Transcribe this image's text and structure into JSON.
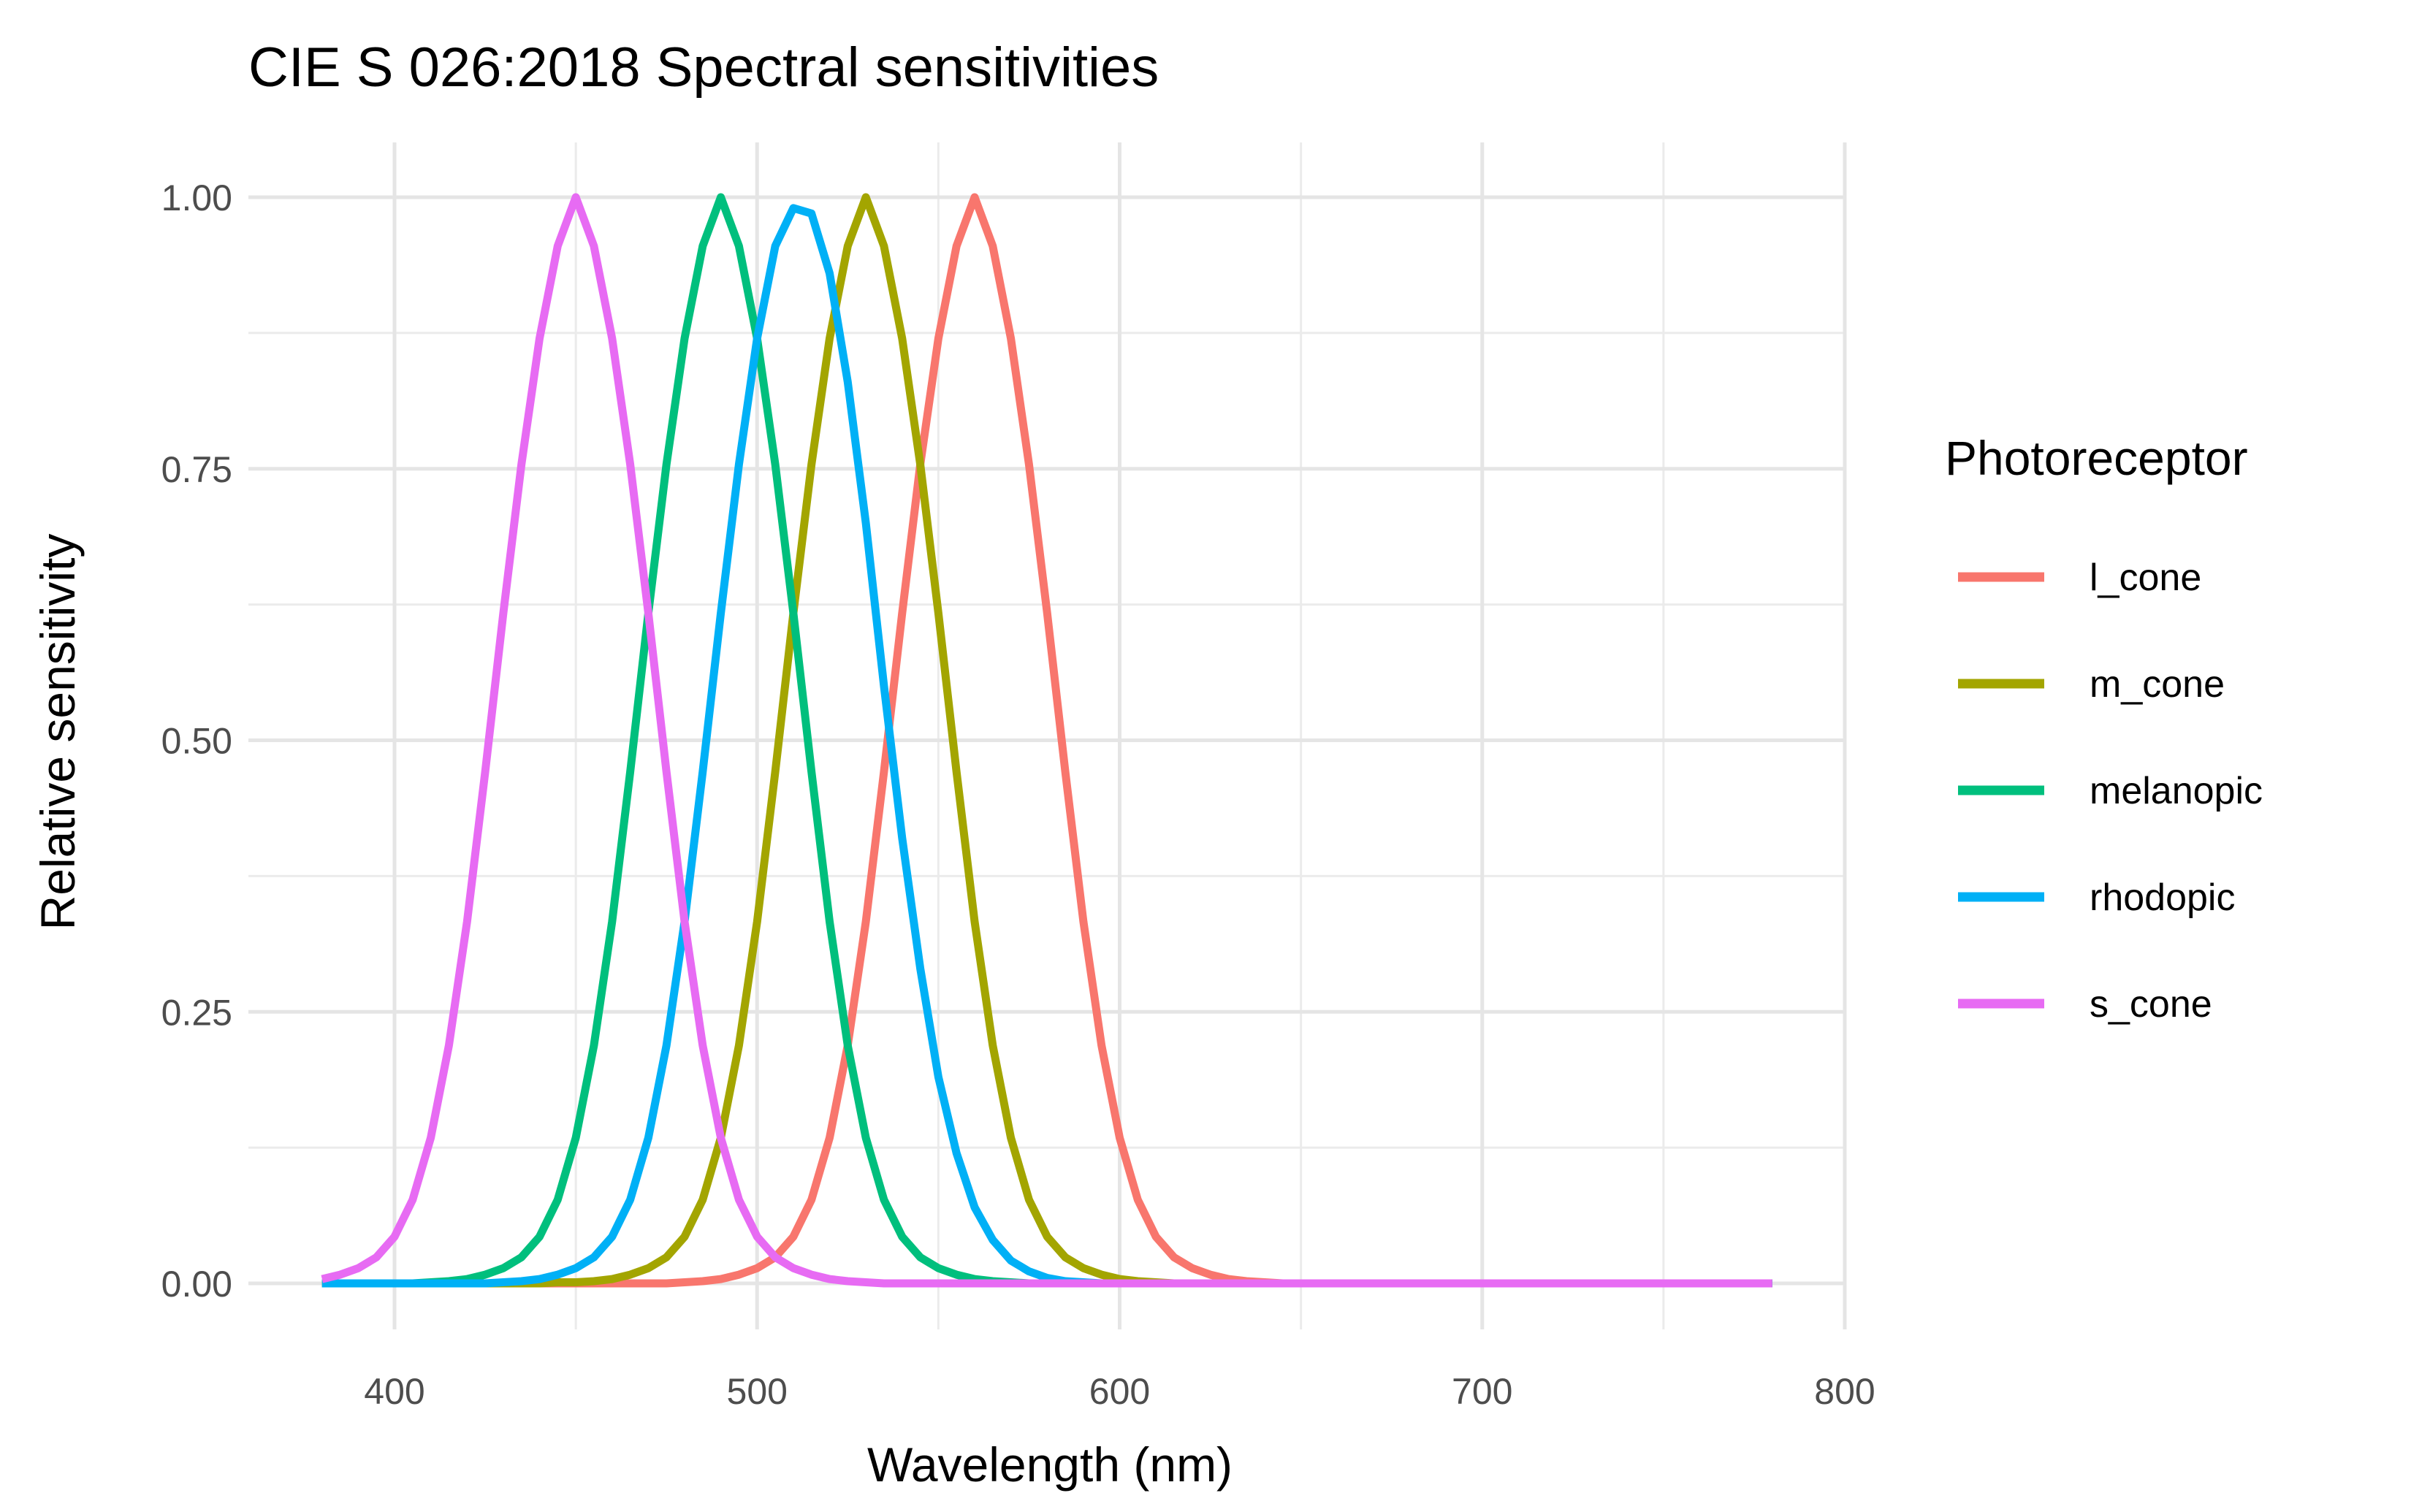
{
  "chart_data": {
    "type": "line",
    "title": "CIE S 026:2018 Spectral sensitivities",
    "xlabel": "Wavelength (nm)",
    "ylabel": "Relative sensitivity",
    "xlim": [
      380,
      800
    ],
    "ylim": [
      0,
      1
    ],
    "x_ticks": [
      400,
      500,
      600,
      700,
      800
    ],
    "x_tick_labels": [
      "400",
      "500",
      "600",
      "700",
      "800"
    ],
    "y_ticks": [
      0,
      0.25,
      0.5,
      0.75,
      1
    ],
    "y_tick_labels": [
      "0.00",
      "0.25",
      "0.50",
      "0.75",
      "1.00"
    ],
    "grid": true,
    "legend": {
      "title": "Photoreceptor",
      "position": "right"
    },
    "x": [
      380,
      385,
      390,
      395,
      400,
      405,
      410,
      415,
      420,
      425,
      430,
      435,
      440,
      445,
      450,
      455,
      460,
      465,
      470,
      475,
      480,
      485,
      490,
      495,
      500,
      505,
      510,
      515,
      520,
      525,
      530,
      535,
      540,
      545,
      550,
      555,
      560,
      565,
      570,
      575,
      580,
      585,
      590,
      595,
      600,
      605,
      610,
      615,
      620,
      625,
      630,
      635,
      640,
      645,
      650,
      655,
      660,
      665,
      670,
      675,
      680,
      685,
      690,
      695,
      700,
      705,
      710,
      715,
      720,
      725,
      730,
      735,
      740,
      745,
      750,
      755,
      760,
      765,
      770,
      775,
      780
    ],
    "series": [
      {
        "name": "l_cone",
        "color": "#F8766D",
        "values": [
          0,
          0,
          0,
          0,
          0,
          0,
          0,
          0,
          0,
          0,
          0,
          0,
          0,
          0,
          0,
          0,
          0,
          0,
          0,
          0,
          0.001,
          0.002,
          0.004,
          0.008,
          0.014,
          0.024,
          0.043,
          0.077,
          0.134,
          0.219,
          0.333,
          0.471,
          0.617,
          0.754,
          0.87,
          0.955,
          1.0,
          0.955,
          0.87,
          0.754,
          0.617,
          0.471,
          0.333,
          0.219,
          0.134,
          0.077,
          0.043,
          0.024,
          0.014,
          0.008,
          0.004,
          0.002,
          0.001,
          0,
          0,
          0,
          0,
          0,
          0,
          0,
          0,
          0,
          0,
          0,
          0,
          0,
          0,
          0,
          0,
          0,
          0,
          0,
          0,
          0,
          0,
          0,
          0,
          0,
          0,
          0,
          0
        ]
      },
      {
        "name": "m_cone",
        "color": "#A3A500",
        "values": [
          0,
          0,
          0,
          0,
          0,
          0,
          0,
          0,
          0,
          0,
          0,
          0,
          0,
          0.001,
          0.001,
          0.002,
          0.004,
          0.008,
          0.014,
          0.024,
          0.043,
          0.077,
          0.134,
          0.219,
          0.333,
          0.471,
          0.617,
          0.754,
          0.87,
          0.955,
          1.0,
          0.955,
          0.87,
          0.754,
          0.617,
          0.471,
          0.333,
          0.219,
          0.134,
          0.077,
          0.043,
          0.024,
          0.014,
          0.008,
          0.004,
          0.002,
          0.001,
          0,
          0,
          0,
          0,
          0,
          0,
          0,
          0,
          0,
          0,
          0,
          0,
          0,
          0,
          0,
          0,
          0,
          0,
          0,
          0,
          0,
          0,
          0,
          0,
          0,
          0,
          0,
          0,
          0,
          0,
          0,
          0,
          0,
          0
        ]
      },
      {
        "name": "melanopic",
        "color": "#00BF7D",
        "values": [
          0,
          0,
          0,
          0,
          0,
          0,
          0.001,
          0.002,
          0.004,
          0.008,
          0.014,
          0.024,
          0.043,
          0.077,
          0.134,
          0.219,
          0.333,
          0.471,
          0.617,
          0.754,
          0.87,
          0.955,
          1.0,
          0.955,
          0.87,
          0.754,
          0.617,
          0.471,
          0.333,
          0.219,
          0.134,
          0.077,
          0.043,
          0.024,
          0.014,
          0.008,
          0.004,
          0.002,
          0.001,
          0,
          0,
          0,
          0,
          0,
          0,
          0,
          0,
          0,
          0,
          0,
          0,
          0,
          0,
          0,
          0,
          0,
          0,
          0,
          0,
          0,
          0,
          0,
          0,
          0,
          0,
          0,
          0,
          0,
          0,
          0,
          0,
          0,
          0,
          0,
          0,
          0,
          0,
          0,
          0,
          0,
          0
        ]
      },
      {
        "name": "rhodopic",
        "color": "#00B0F6",
        "values": [
          0,
          0,
          0,
          0,
          0,
          0,
          0,
          0,
          0,
          0,
          0.001,
          0.002,
          0.004,
          0.008,
          0.014,
          0.024,
          0.043,
          0.077,
          0.134,
          0.219,
          0.333,
          0.471,
          0.617,
          0.754,
          0.87,
          0.955,
          0.99,
          0.985,
          0.93,
          0.83,
          0.7,
          0.55,
          0.41,
          0.29,
          0.19,
          0.12,
          0.07,
          0.04,
          0.021,
          0.011,
          0.005,
          0.002,
          0.001,
          0,
          0,
          0,
          0,
          0,
          0,
          0,
          0,
          0,
          0,
          0,
          0,
          0,
          0,
          0,
          0,
          0,
          0,
          0,
          0,
          0,
          0,
          0,
          0,
          0,
          0,
          0,
          0,
          0,
          0,
          0,
          0,
          0,
          0,
          0,
          0,
          0,
          0
        ]
      },
      {
        "name": "s_cone",
        "color": "#E76BF3",
        "values": [
          0.004,
          0.008,
          0.014,
          0.024,
          0.043,
          0.077,
          0.134,
          0.219,
          0.333,
          0.471,
          0.617,
          0.754,
          0.87,
          0.955,
          1.0,
          0.955,
          0.87,
          0.754,
          0.617,
          0.471,
          0.333,
          0.219,
          0.134,
          0.077,
          0.043,
          0.024,
          0.014,
          0.008,
          0.004,
          0.002,
          0.001,
          0,
          0,
          0,
          0,
          0,
          0,
          0,
          0,
          0,
          0,
          0,
          0,
          0,
          0,
          0,
          0,
          0,
          0,
          0,
          0,
          0,
          0,
          0,
          0,
          0,
          0,
          0,
          0,
          0,
          0,
          0,
          0,
          0,
          0,
          0,
          0,
          0,
          0,
          0,
          0,
          0,
          0,
          0,
          0,
          0,
          0,
          0,
          0,
          0,
          0
        ]
      }
    ]
  }
}
